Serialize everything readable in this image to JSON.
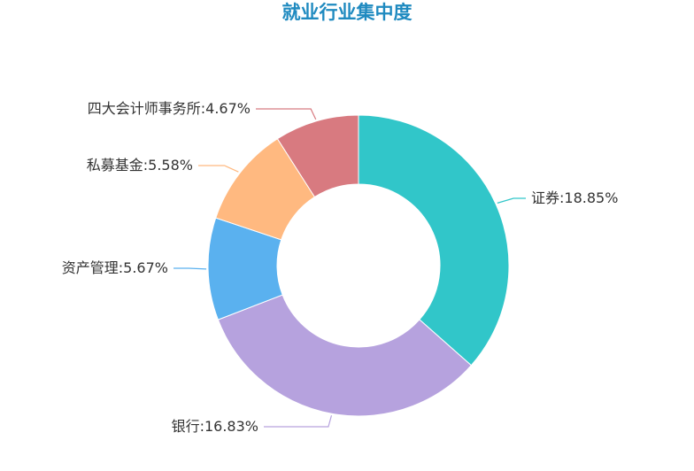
{
  "title": "就业行业集中度",
  "chart_data": {
    "type": "pie",
    "donut": true,
    "title": "就业行业集中度",
    "legend": "none",
    "slices": [
      {
        "name": "证券",
        "value": 18.85,
        "label": "证券:18.85%",
        "color": "#31c6c9"
      },
      {
        "name": "银行",
        "value": 16.83,
        "label": "银行:16.83%",
        "color": "#b6a2de"
      },
      {
        "name": "资产管理",
        "value": 5.67,
        "label": "资产管理:5.67%",
        "color": "#5ab1ef"
      },
      {
        "name": "私募基金",
        "value": 5.58,
        "label": "私募基金:5.58%",
        "color": "#ffb980"
      },
      {
        "name": "四大会计师事务所",
        "value": 4.67,
        "label": "四大会计师事务所:4.67%",
        "color": "#d87a80"
      }
    ]
  }
}
